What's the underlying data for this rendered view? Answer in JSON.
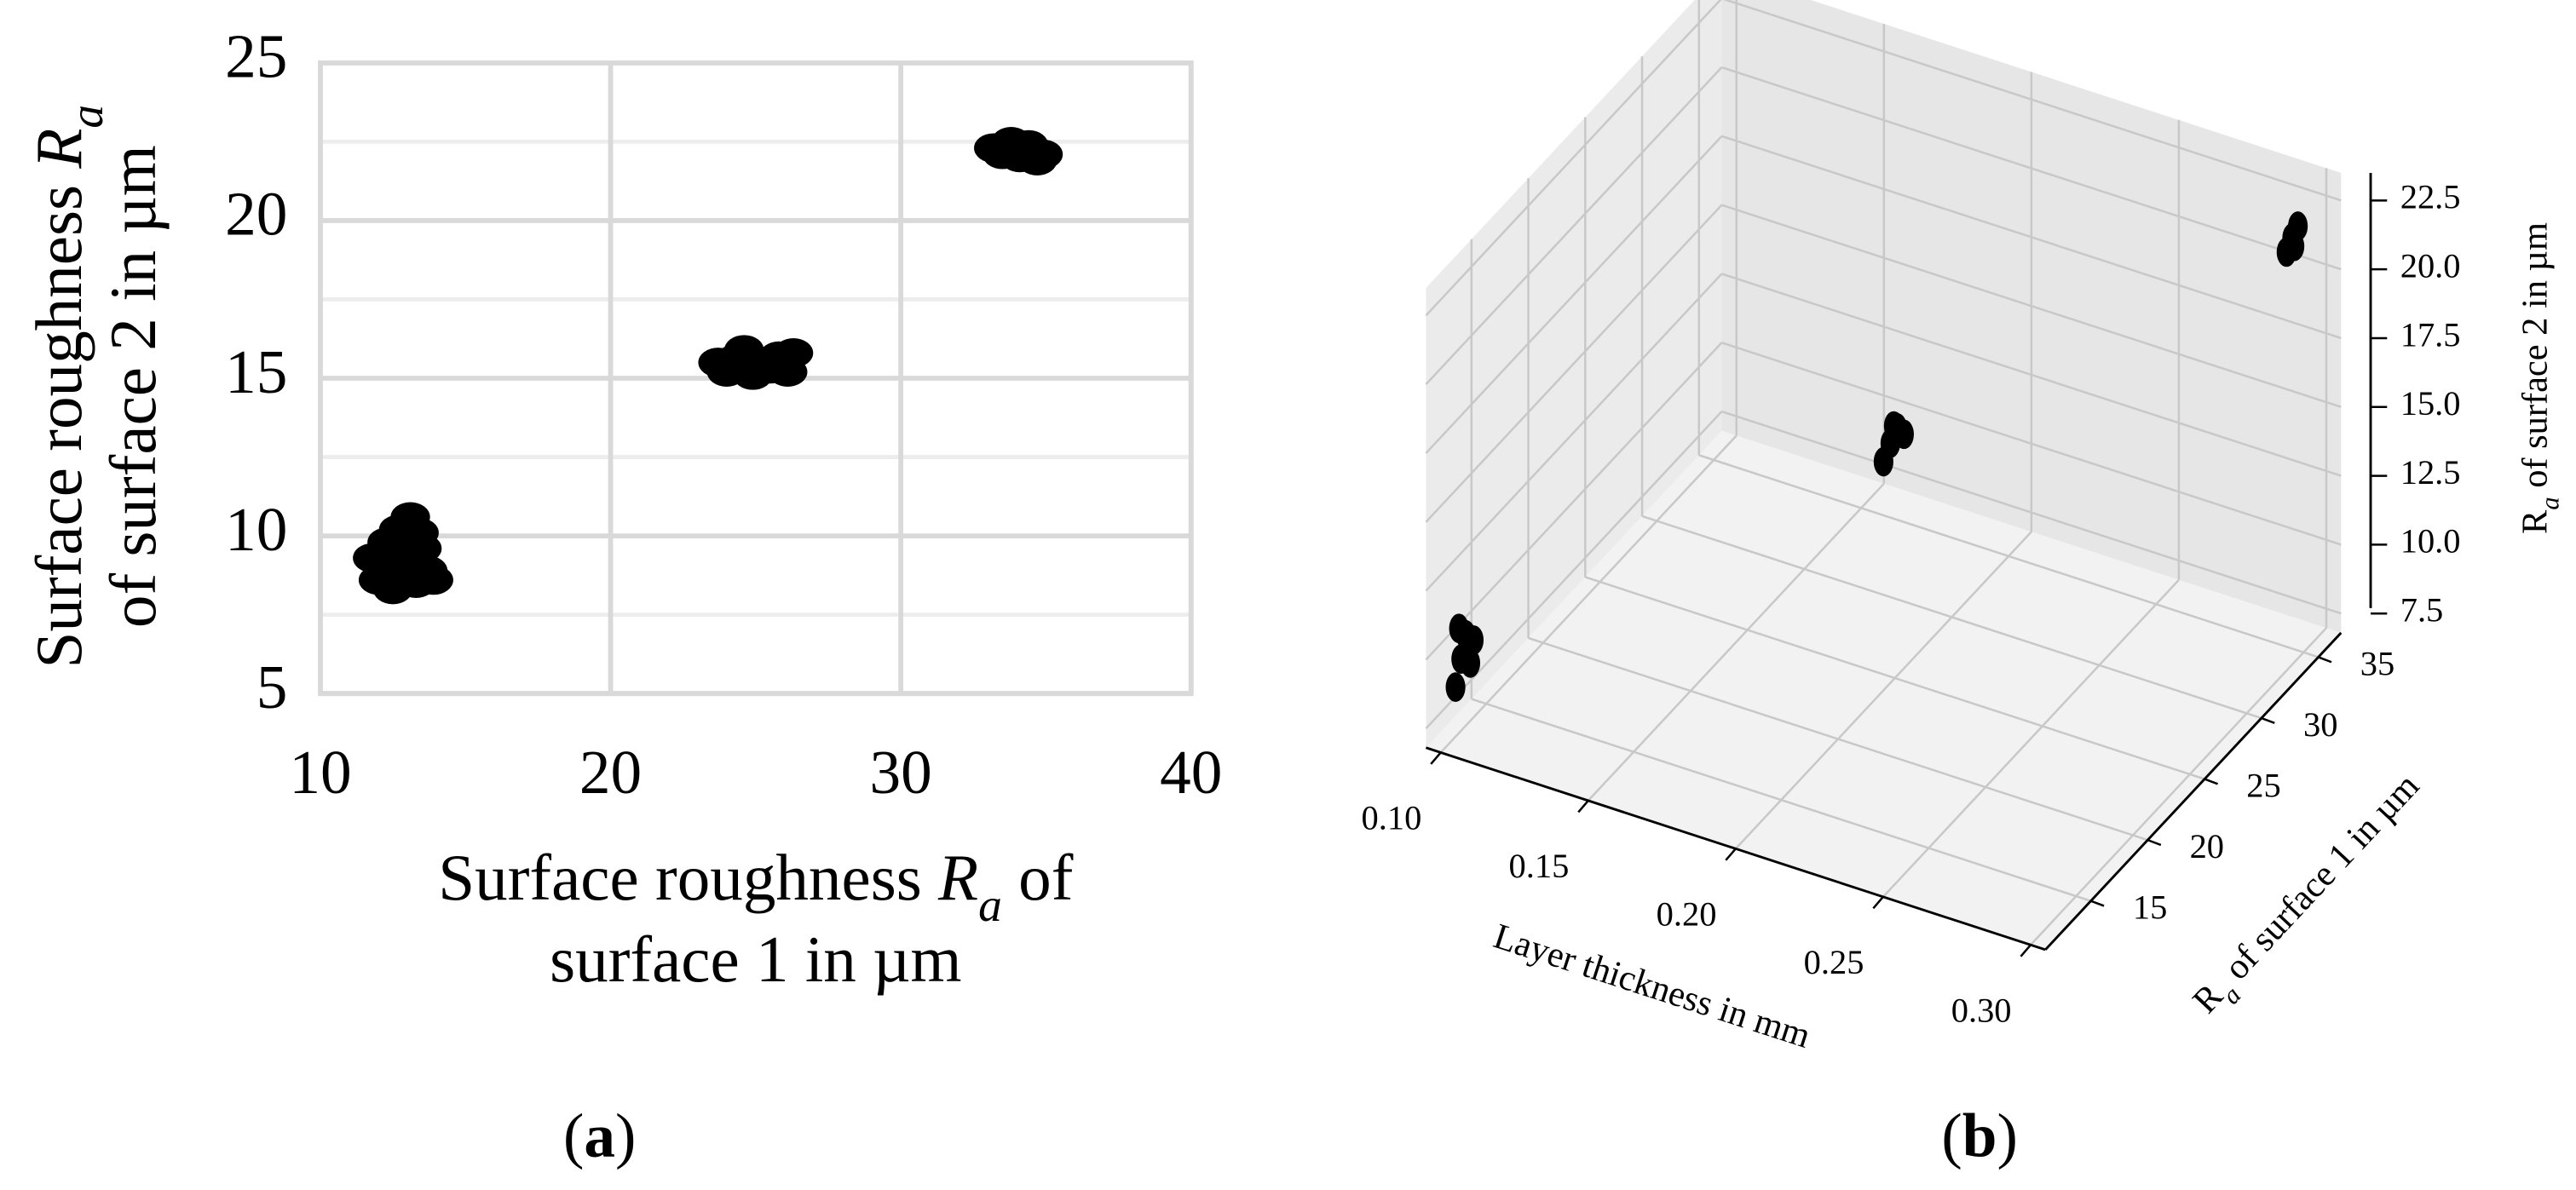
{
  "chart_data": [
    {
      "type": "scatter",
      "xlabel": [
        [
          "Surface roughness ",
          "R",
          "a",
          " of"
        ],
        [
          "surface 1 in µm"
        ]
      ],
      "ylabel": [
        [
          "Surface roughness ",
          "R",
          "a"
        ],
        [
          "of surface 2 in µm"
        ]
      ],
      "panel_label": [
        "(",
        "a",
        ")"
      ],
      "x": [
        11.8,
        12.0,
        12.3,
        12.5,
        12.7,
        12.9,
        13.1,
        13.3,
        13.5,
        13.7,
        13.9,
        12.2,
        12.8,
        13.4,
        13.0,
        23.7,
        24.0,
        24.3,
        24.6,
        24.9,
        25.2,
        25.5,
        25.8,
        26.1,
        26.3,
        33.2,
        33.5,
        33.8,
        34.1,
        34.4,
        34.7,
        34.9
      ],
      "y": [
        9.3,
        8.6,
        9.8,
        8.3,
        10.2,
        9.0,
        10.6,
        8.5,
        9.6,
        8.9,
        8.6,
        9.1,
        8.8,
        10.1,
        9.4,
        15.5,
        15.2,
        15.6,
        15.9,
        15.1,
        15.4,
        15.3,
        15.7,
        15.2,
        15.8,
        22.3,
        22.1,
        22.5,
        22.0,
        22.4,
        21.9,
        22.1
      ],
      "color": "#000000",
      "xlim": [
        10,
        40
      ],
      "ylim": [
        5,
        25
      ],
      "xticks": [
        10,
        20,
        30,
        40
      ],
      "yticks": [
        5,
        10,
        15,
        20,
        25
      ],
      "grid": true
    },
    {
      "type": "scatter3d",
      "xlabel": [
        "Layer thickness in mm"
      ],
      "ylabel": [
        "R",
        "a",
        " of surface 1 in µm"
      ],
      "zlabel": [
        "R",
        "a",
        " of surface 2 in µm"
      ],
      "panel_label": [
        "(",
        "b",
        ")"
      ],
      "x": [
        0.1,
        0.1,
        0.1,
        0.1,
        0.1,
        0.1,
        0.2,
        0.2,
        0.2,
        0.2,
        0.2,
        0.3,
        0.3,
        0.3,
        0.3
      ],
      "y": [
        12.3,
        12.8,
        13.2,
        13.6,
        12.6,
        13.9,
        24.0,
        24.6,
        25.2,
        25.8,
        24.9,
        33.5,
        34.0,
        34.5,
        34.2
      ],
      "z": [
        8.6,
        9.4,
        10.1,
        8.9,
        10.6,
        9.6,
        15.1,
        15.5,
        15.8,
        15.3,
        16.0,
        22.0,
        22.3,
        22.5,
        21.9
      ],
      "color": "#000000",
      "xlim": [
        0.095,
        0.305
      ],
      "ylim": [
        11,
        37
      ],
      "zlim": [
        6.8,
        23.5
      ],
      "xticks": [
        {
          "value": 0.1,
          "label": "0.10"
        },
        0.15,
        {
          "value": 0.2,
          "label": "0.20"
        },
        0.25,
        {
          "value": 0.3,
          "label": "0.30"
        }
      ],
      "yticks": [
        15,
        20,
        25,
        30,
        35
      ],
      "zticks": [
        7.5,
        {
          "value": 10,
          "label": "10.0"
        },
        12.5,
        {
          "value": 15,
          "label": "15.0"
        },
        17.5,
        {
          "value": 20,
          "label": "20.0"
        },
        22.5
      ],
      "grid": true
    }
  ]
}
